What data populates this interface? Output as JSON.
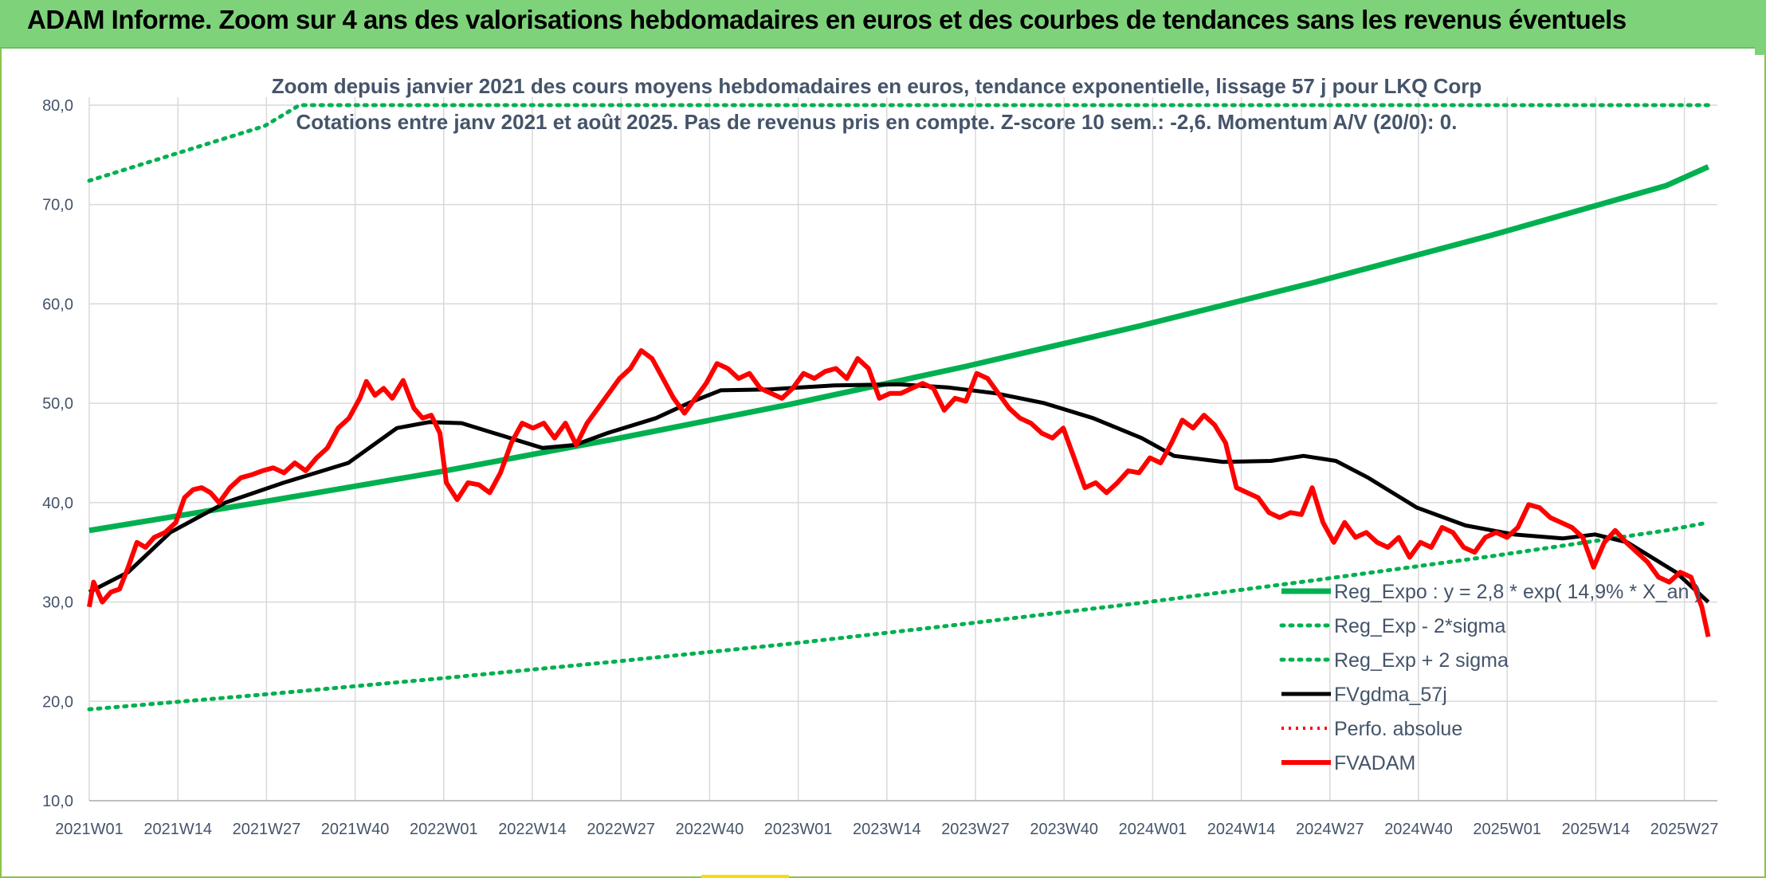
{
  "header": {
    "title": "ADAM Informe. Zoom sur 4 ans des valorisations hebdomadaires en euros et des courbes de tendances sans les revenus éventuels"
  },
  "chart_data": {
    "type": "line",
    "subtitle_line1": "Zoom depuis janvier 2021 des cours moyens hebdomadaires en euros, tendance exponentielle, lissage 57 j pour LKQ Corp",
    "subtitle_line2": "Cotations entre janv 2021 et août 2025. Pas de revenus pris en compte. Z-score 10 sem.: -2,6. Momentum A/V (20/0): 0.",
    "ylim": [
      10,
      80
    ],
    "yticks": [
      "10,0",
      "20,0",
      "30,0",
      "40,0",
      "50,0",
      "60,0",
      "70,0",
      "80,0"
    ],
    "xticks": [
      "2021W01",
      "2021W14",
      "2021W27",
      "2021W40",
      "2022W01",
      "2022W14",
      "2022W27",
      "2022W40",
      "2023W01",
      "2023W14",
      "2023W27",
      "2023W40",
      "2024W01",
      "2024W14",
      "2024W27",
      "2024W40",
      "2025W01",
      "2025W14",
      "2025W27"
    ],
    "grid": true,
    "legend_position": "bottom-right",
    "colors": {
      "reg_expo": "#00b050",
      "fvgdma": "#000000",
      "perfo": "#ff0000",
      "fvadam": "#ff0000",
      "axis_text": "#44546a",
      "grid": "#d9d9d9"
    },
    "series": [
      {
        "name": "Reg_Expo : y = 2,8 * exp( 14,9% *  X_an )",
        "style": "solid-green",
        "points": [
          [
            0,
            37.2
          ],
          [
            0.5,
            40.1
          ],
          [
            1,
            43.1
          ],
          [
            1.5,
            46.4
          ],
          [
            2,
            49.9
          ],
          [
            2.5,
            53.7
          ],
          [
            3,
            57.8
          ],
          [
            3.5,
            62.2
          ],
          [
            4,
            66.9
          ],
          [
            4.5,
            71.9
          ],
          [
            4.62,
            73.8
          ]
        ]
      },
      {
        "name": "Reg_Exp - 2*sigma",
        "style": "dotted-green",
        "points": [
          [
            0,
            19.2
          ],
          [
            0.5,
            20.7
          ],
          [
            1,
            22.3
          ],
          [
            1.5,
            24.0
          ],
          [
            2,
            25.8
          ],
          [
            2.5,
            27.8
          ],
          [
            3,
            29.9
          ],
          [
            3.5,
            32.2
          ],
          [
            4,
            34.6
          ],
          [
            4.5,
            37.2
          ],
          [
            4.62,
            38.0
          ]
        ]
      },
      {
        "name": "Reg_Exp + 2 sigma",
        "style": "dotted-green",
        "points": [
          [
            0,
            72.4
          ],
          [
            0.5,
            77.9
          ],
          [
            0.6,
            80.0
          ],
          [
            4.62,
            80.0
          ]
        ]
      },
      {
        "name": "FVgdma_57j",
        "style": "solid-black",
        "points": [
          [
            0,
            31.0
          ],
          [
            0.12,
            33.0
          ],
          [
            0.25,
            37.0
          ],
          [
            0.42,
            40.0
          ],
          [
            0.6,
            42.0
          ],
          [
            0.8,
            44.0
          ],
          [
            0.95,
            47.5
          ],
          [
            1.05,
            48.1
          ],
          [
            1.15,
            48.0
          ],
          [
            1.25,
            47.0
          ],
          [
            1.4,
            45.5
          ],
          [
            1.5,
            45.8
          ],
          [
            1.6,
            47.0
          ],
          [
            1.75,
            48.5
          ],
          [
            1.85,
            50.0
          ],
          [
            1.95,
            51.3
          ],
          [
            2.1,
            51.4
          ],
          [
            2.3,
            51.8
          ],
          [
            2.5,
            51.9
          ],
          [
            2.65,
            51.6
          ],
          [
            2.8,
            51.0
          ],
          [
            2.95,
            50.0
          ],
          [
            3.1,
            48.5
          ],
          [
            3.25,
            46.5
          ],
          [
            3.35,
            44.7
          ],
          [
            3.5,
            44.1
          ],
          [
            3.65,
            44.2
          ],
          [
            3.75,
            44.7
          ],
          [
            3.85,
            44.2
          ],
          [
            3.95,
            42.5
          ],
          [
            4.1,
            39.5
          ],
          [
            4.25,
            37.7
          ],
          [
            4.4,
            36.8
          ],
          [
            4.55,
            36.4
          ],
          [
            4.65,
            36.8
          ],
          [
            4.75,
            36.0
          ],
          [
            4.9,
            33.0
          ],
          [
            5.0,
            30.0
          ]
        ]
      },
      {
        "name": "Perfo. absolue",
        "style": "dotted-red",
        "points": []
      },
      {
        "name": "FVADAM",
        "style": "solid-red-thick",
        "points": [
          [
            0,
            29.5
          ],
          [
            0.02,
            32.0
          ],
          [
            0.06,
            30.0
          ],
          [
            0.1,
            31.0
          ],
          [
            0.14,
            31.3
          ],
          [
            0.18,
            33.5
          ],
          [
            0.22,
            36.0
          ],
          [
            0.26,
            35.5
          ],
          [
            0.3,
            36.5
          ],
          [
            0.35,
            37.0
          ],
          [
            0.4,
            38.0
          ],
          [
            0.44,
            40.5
          ],
          [
            0.48,
            41.3
          ],
          [
            0.52,
            41.5
          ],
          [
            0.56,
            41.0
          ],
          [
            0.6,
            40.0
          ],
          [
            0.65,
            41.5
          ],
          [
            0.7,
            42.5
          ],
          [
            0.75,
            42.8
          ],
          [
            0.8,
            43.2
          ],
          [
            0.85,
            43.5
          ],
          [
            0.9,
            43.0
          ],
          [
            0.95,
            44.0
          ],
          [
            1.0,
            43.2
          ],
          [
            1.05,
            44.5
          ],
          [
            1.1,
            45.5
          ],
          [
            1.15,
            47.5
          ],
          [
            1.2,
            48.5
          ],
          [
            1.25,
            50.5
          ],
          [
            1.28,
            52.2
          ],
          [
            1.32,
            50.8
          ],
          [
            1.36,
            51.5
          ],
          [
            1.4,
            50.5
          ],
          [
            1.45,
            52.3
          ],
          [
            1.5,
            49.5
          ],
          [
            1.54,
            48.5
          ],
          [
            1.58,
            48.8
          ],
          [
            1.62,
            47.0
          ],
          [
            1.65,
            42.0
          ],
          [
            1.7,
            40.3
          ],
          [
            1.75,
            42.0
          ],
          [
            1.8,
            41.8
          ],
          [
            1.85,
            41.0
          ],
          [
            1.9,
            43.0
          ],
          [
            1.95,
            46.0
          ],
          [
            2.0,
            48.0
          ],
          [
            2.05,
            47.5
          ],
          [
            2.1,
            48.0
          ],
          [
            2.15,
            46.5
          ],
          [
            2.2,
            48.0
          ],
          [
            2.25,
            45.8
          ],
          [
            2.3,
            48.0
          ],
          [
            2.35,
            49.5
          ],
          [
            2.4,
            51.0
          ],
          [
            2.45,
            52.5
          ],
          [
            2.5,
            53.5
          ],
          [
            2.55,
            55.3
          ],
          [
            2.6,
            54.5
          ],
          [
            2.65,
            52.5
          ],
          [
            2.7,
            50.5
          ],
          [
            2.75,
            49.0
          ],
          [
            2.8,
            50.5
          ],
          [
            2.85,
            52.0
          ],
          [
            2.9,
            54.0
          ],
          [
            2.95,
            53.5
          ],
          [
            3.0,
            52.5
          ],
          [
            3.05,
            53.0
          ],
          [
            3.1,
            51.5
          ],
          [
            3.15,
            51.0
          ],
          [
            3.2,
            50.5
          ],
          [
            3.25,
            51.5
          ],
          [
            3.3,
            53.0
          ],
          [
            3.35,
            52.5
          ],
          [
            3.4,
            53.2
          ],
          [
            3.45,
            53.5
          ],
          [
            3.5,
            52.5
          ],
          [
            3.55,
            54.5
          ],
          [
            3.6,
            53.5
          ],
          [
            3.65,
            50.5
          ],
          [
            3.7,
            51.0
          ],
          [
            3.75,
            51.0
          ],
          [
            3.8,
            51.5
          ],
          [
            3.85,
            52.0
          ],
          [
            3.9,
            51.5
          ],
          [
            3.95,
            49.3
          ],
          [
            4.0,
            50.5
          ],
          [
            4.05,
            50.2
          ],
          [
            4.1,
            53.0
          ],
          [
            4.15,
            52.5
          ],
          [
            4.2,
            51.0
          ],
          [
            4.25,
            49.5
          ],
          [
            4.3,
            48.5
          ],
          [
            4.35,
            48.0
          ],
          [
            4.4,
            47.0
          ],
          [
            4.45,
            46.5
          ],
          [
            4.5,
            47.5
          ],
          [
            4.55,
            44.5
          ],
          [
            4.6,
            41.5
          ],
          [
            4.65,
            42.0
          ],
          [
            4.7,
            41.0
          ],
          [
            4.75,
            42.0
          ],
          [
            4.8,
            43.2
          ],
          [
            4.85,
            43.0
          ],
          [
            4.9,
            44.5
          ],
          [
            4.95,
            44.0
          ],
          [
            5.0,
            46.0
          ],
          [
            5.05,
            48.3
          ],
          [
            5.1,
            47.5
          ],
          [
            5.15,
            48.8
          ],
          [
            5.2,
            47.8
          ],
          [
            5.25,
            46.0
          ],
          [
            5.3,
            41.5
          ],
          [
            5.35,
            41.0
          ],
          [
            5.4,
            40.5
          ],
          [
            5.45,
            39.0
          ],
          [
            5.5,
            38.5
          ],
          [
            5.55,
            39.0
          ],
          [
            5.6,
            38.8
          ],
          [
            5.65,
            41.5
          ],
          [
            5.7,
            38.0
          ],
          [
            5.75,
            36.0
          ],
          [
            5.8,
            38.0
          ],
          [
            5.85,
            36.5
          ],
          [
            5.9,
            37.0
          ],
          [
            5.95,
            36.0
          ],
          [
            6.0,
            35.5
          ],
          [
            6.05,
            36.5
          ],
          [
            6.1,
            34.5
          ],
          [
            6.15,
            36.0
          ],
          [
            6.2,
            35.5
          ],
          [
            6.25,
            37.5
          ],
          [
            6.3,
            37.0
          ],
          [
            6.35,
            35.5
          ],
          [
            6.4,
            35.0
          ],
          [
            6.45,
            36.5
          ],
          [
            6.5,
            37.0
          ],
          [
            6.55,
            36.5
          ],
          [
            6.6,
            37.5
          ],
          [
            6.65,
            39.8
          ],
          [
            6.7,
            39.5
          ],
          [
            6.75,
            38.5
          ],
          [
            6.8,
            38.0
          ],
          [
            6.85,
            37.5
          ],
          [
            6.9,
            36.5
          ],
          [
            6.95,
            33.5
          ],
          [
            7.0,
            36.0
          ],
          [
            7.05,
            37.2
          ],
          [
            7.1,
            36.0
          ],
          [
            7.15,
            35.0
          ],
          [
            7.2,
            34.0
          ],
          [
            7.25,
            32.5
          ],
          [
            7.3,
            32.0
          ],
          [
            7.35,
            33.0
          ],
          [
            7.4,
            32.5
          ],
          [
            7.45,
            29.5
          ],
          [
            7.48,
            26.5
          ]
        ]
      }
    ]
  }
}
